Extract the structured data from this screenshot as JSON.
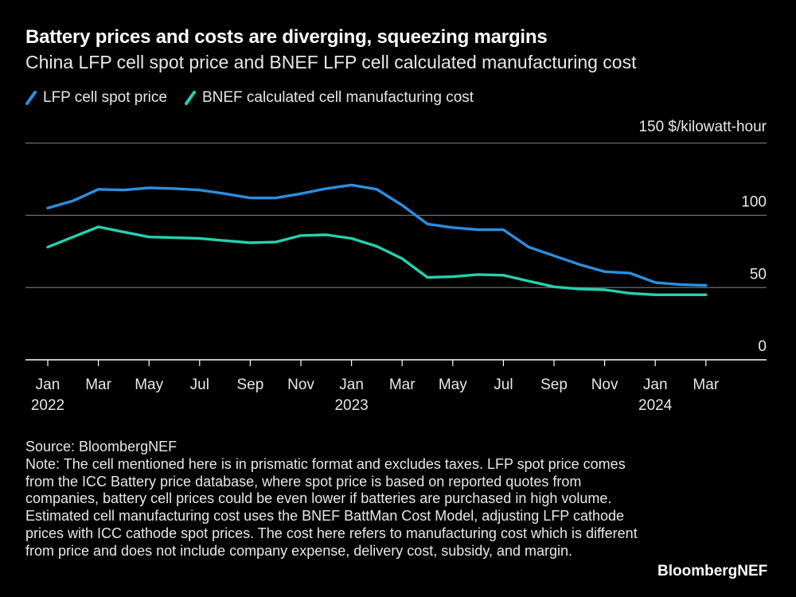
{
  "chart_data": {
    "type": "line",
    "title": "Battery prices and costs are diverging, squeezing margins",
    "subtitle": "China LFP cell spot price and BNEF LFP cell calculated manufacturing cost",
    "y_unit_label": "150 $/kilowatt-hour",
    "ylim": [
      0,
      150
    ],
    "y_ticks": [
      0,
      50,
      100
    ],
    "x_tick_labels": [
      "Jan",
      "Mar",
      "May",
      "Jul",
      "Sep",
      "Nov",
      "Jan",
      "Mar",
      "May",
      "Jul",
      "Sep",
      "Nov",
      "Jan",
      "Mar"
    ],
    "x_tick_months": [
      0,
      2,
      4,
      6,
      8,
      10,
      12,
      14,
      16,
      18,
      20,
      22,
      24,
      26
    ],
    "year_labels": [
      {
        "label": "2022",
        "month": 0
      },
      {
        "label": "2023",
        "month": 12
      },
      {
        "label": "2024",
        "month": 24
      }
    ],
    "series": [
      {
        "name": "LFP cell spot price",
        "color": "#2a8fe0",
        "x": [
          0,
          1,
          2,
          3,
          4,
          5,
          6,
          7,
          8,
          9,
          10,
          11,
          12,
          13,
          14,
          15,
          16,
          17,
          18,
          19,
          20,
          21,
          22,
          23,
          24,
          25,
          26
        ],
        "values": [
          105,
          110,
          118,
          117.5,
          119,
          118.5,
          117.5,
          115,
          112,
          112,
          115,
          118.5,
          121,
          118,
          107,
          94,
          91.5,
          90,
          90,
          78,
          72,
          66,
          61,
          60,
          53.5,
          52,
          51.5
        ]
      },
      {
        "name": "BNEF calculated cell manufacturing cost",
        "color": "#25d1b0",
        "x": [
          0,
          1,
          2,
          3,
          4,
          5,
          6,
          7,
          8,
          9,
          10,
          11,
          12,
          13,
          14,
          15,
          16,
          17,
          18,
          19,
          20,
          21,
          22,
          23,
          24,
          25,
          26
        ],
        "values": [
          78,
          85,
          92,
          88.5,
          85,
          84.5,
          84,
          82.5,
          81,
          81.5,
          86,
          86.5,
          84,
          78.5,
          70,
          57,
          57.5,
          59,
          58.5,
          54.5,
          50.5,
          49,
          48.5,
          46,
          45,
          45,
          45
        ]
      }
    ]
  },
  "source": "Source: BloombergNEF",
  "note": "Note: The cell mentioned here is in prismatic format and excludes taxes. LFP spot price comes from the ICC Battery price database, where spot price is based on reported quotes from companies, battery cell prices could be even lower if batteries are purchased in high volume. Estimated cell manufacturing cost uses the BNEF BattMan Cost Model, adjusting LFP cathode prices with ICC cathode spot prices. The cost here refers to manufacturing cost which is different from price and does not include company expense, delivery cost, subsidy, and margin.",
  "brand": "BloombergNEF"
}
